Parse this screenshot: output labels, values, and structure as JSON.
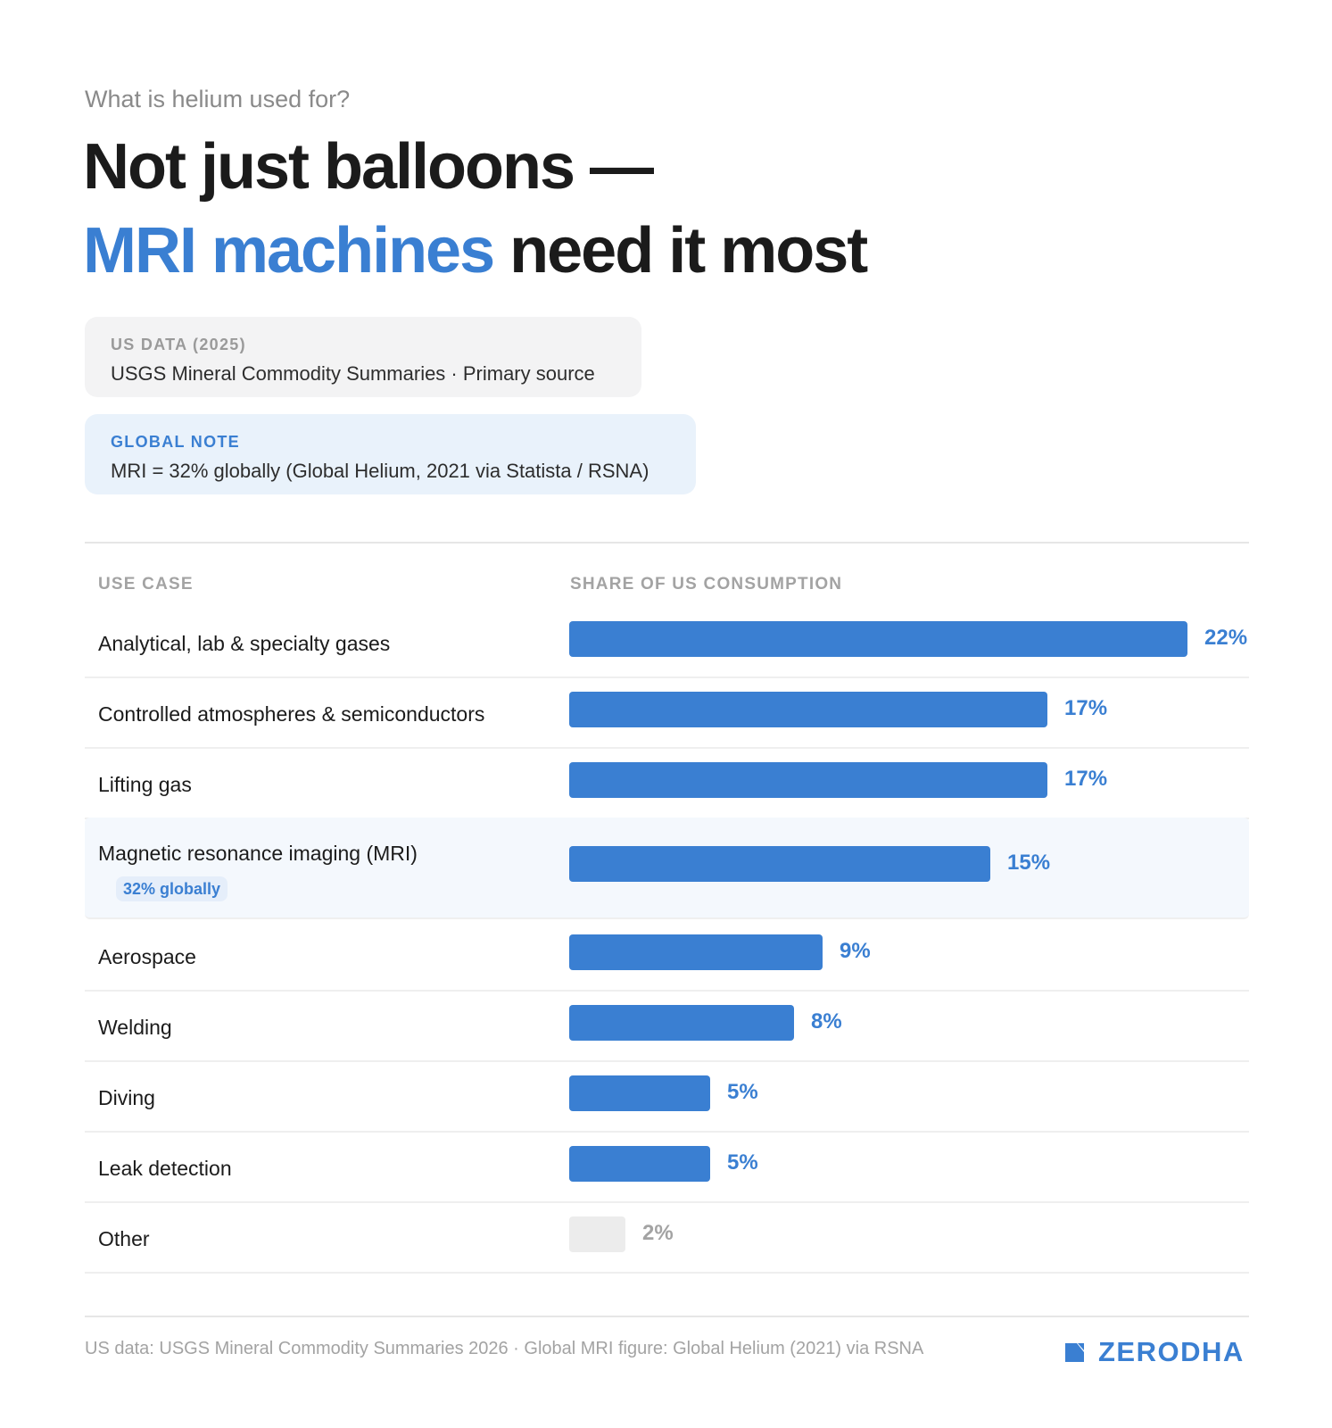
{
  "eyebrow": "What is helium used for?",
  "headline": {
    "line1": "Not just balloons —",
    "line2_accent": "MRI machines",
    "line2_rest": "need it most"
  },
  "cards": {
    "us": {
      "title": "US DATA (2025)",
      "text": "USGS Mineral Commodity Summaries · Primary source"
    },
    "global": {
      "title": "GLOBAL NOTE",
      "text": "MRI = 32% globally (Global Helium, 2021 via Statista / RSNA)"
    }
  },
  "table": {
    "col_use_case": "USE CASE",
    "col_share": "SHARE OF US CONSUMPTION"
  },
  "footer": {
    "source": "US data: USGS Mineral Commodity Summaries 2026 · Global MRI figure: Global Helium (2021) via RSNA",
    "brand": "ZERODHA"
  },
  "colors": {
    "accent": "#3a7fd2",
    "muted_bar": "#ececec",
    "highlight_row": "#f4f8fd"
  },
  "chart_data": {
    "type": "bar",
    "orientation": "horizontal",
    "title": "Not just balloons — MRI machines need it most",
    "xlabel": "SHARE OF US CONSUMPTION",
    "ylabel": "USE CASE",
    "unit": "%",
    "xlim": [
      0,
      22
    ],
    "categories": [
      "Analytical, lab & specialty gases",
      "Controlled atmospheres & semiconductors",
      "Lifting gas",
      "Magnetic resonance imaging (MRI)",
      "Aerospace",
      "Welding",
      "Diving",
      "Leak detection",
      "Other"
    ],
    "values": [
      22,
      17,
      17,
      15,
      9,
      8,
      5,
      5,
      2
    ],
    "labels": [
      "22%",
      "17%",
      "17%",
      "15%",
      "9%",
      "8%",
      "5%",
      "5%",
      "2%"
    ],
    "annotations": [
      {
        "category": "Magnetic resonance imaging (MRI)",
        "text": "32% globally"
      }
    ],
    "highlight_category": "Magnetic resonance imaging (MRI)",
    "muted_category": "Other"
  }
}
